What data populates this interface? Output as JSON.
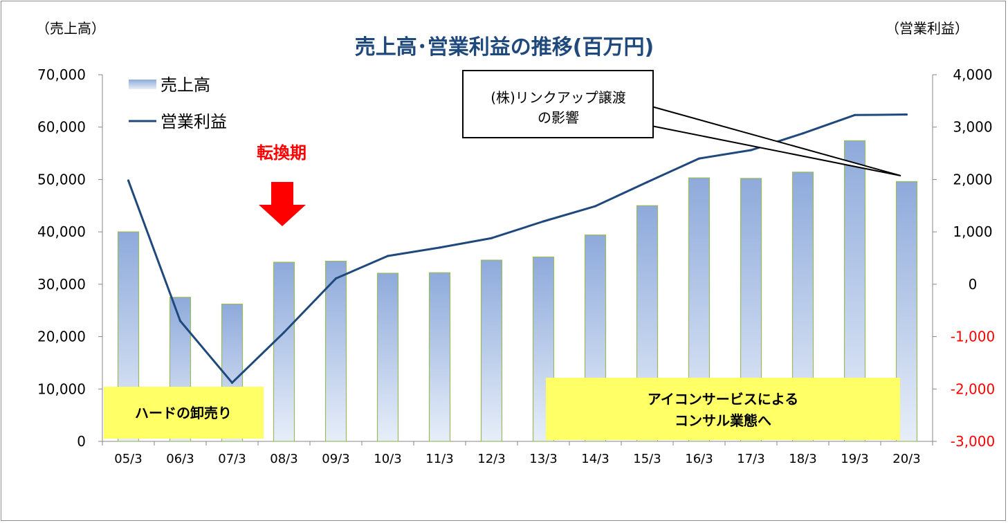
{
  "chart_data": {
    "type": "bar",
    "title": "売上高･営業利益の推移(百万円)",
    "left_axis_label": "（売上高）",
    "right_axis_label": "（営業利益）",
    "categories": [
      "05/3",
      "06/3",
      "07/3",
      "08/3",
      "09/3",
      "10/3",
      "11/3",
      "12/3",
      "13/3",
      "14/3",
      "15/3",
      "16/3",
      "17/3",
      "18/3",
      "19/3",
      "20/3"
    ],
    "series": [
      {
        "name": "売上高",
        "type": "bar",
        "axis": "left",
        "values": [
          40000,
          27500,
          26200,
          34200,
          34400,
          32100,
          32200,
          34600,
          35200,
          39400,
          45000,
          50300,
          50200,
          51400,
          57400,
          49600
        ]
      },
      {
        "name": "営業利益",
        "type": "line",
        "axis": "right",
        "values": [
          1980,
          -700,
          -1880,
          -920,
          110,
          540,
          700,
          880,
          1200,
          1490,
          1950,
          2400,
          2560,
          2880,
          3230,
          3240
        ]
      }
    ],
    "left_axis": {
      "min": 0,
      "max": 70000,
      "step": 10000,
      "ticks": [
        "0",
        "10,000",
        "20,000",
        "30,000",
        "40,000",
        "50,000",
        "60,000",
        "70,000"
      ]
    },
    "right_axis": {
      "min": -3000,
      "max": 4000,
      "step": 1000,
      "ticks": [
        "-3,000",
        "-2,000",
        "-1,000",
        "0",
        "1,000",
        "2,000",
        "3,000",
        "4,000"
      ]
    },
    "negative_tick_color": "#ff0000",
    "bar_color_top": "#8eaadb",
    "bar_color_bottom": "#e7eef9",
    "bar_border_color": "#9bbb59",
    "line_color": "#1f497d",
    "legend_position": "top-left",
    "grid": false,
    "annotations": {
      "transition": "転換期",
      "callout_line1": "(株)リンクアップ譲渡",
      "callout_line2": "の影響",
      "box_left": "ハードの卸売り",
      "box_right_line1": "アイコンサービスによる",
      "box_right_line2": "コンサル業態へ"
    },
    "annotation_color": "#ff0000",
    "box_color": "#ffff66"
  }
}
